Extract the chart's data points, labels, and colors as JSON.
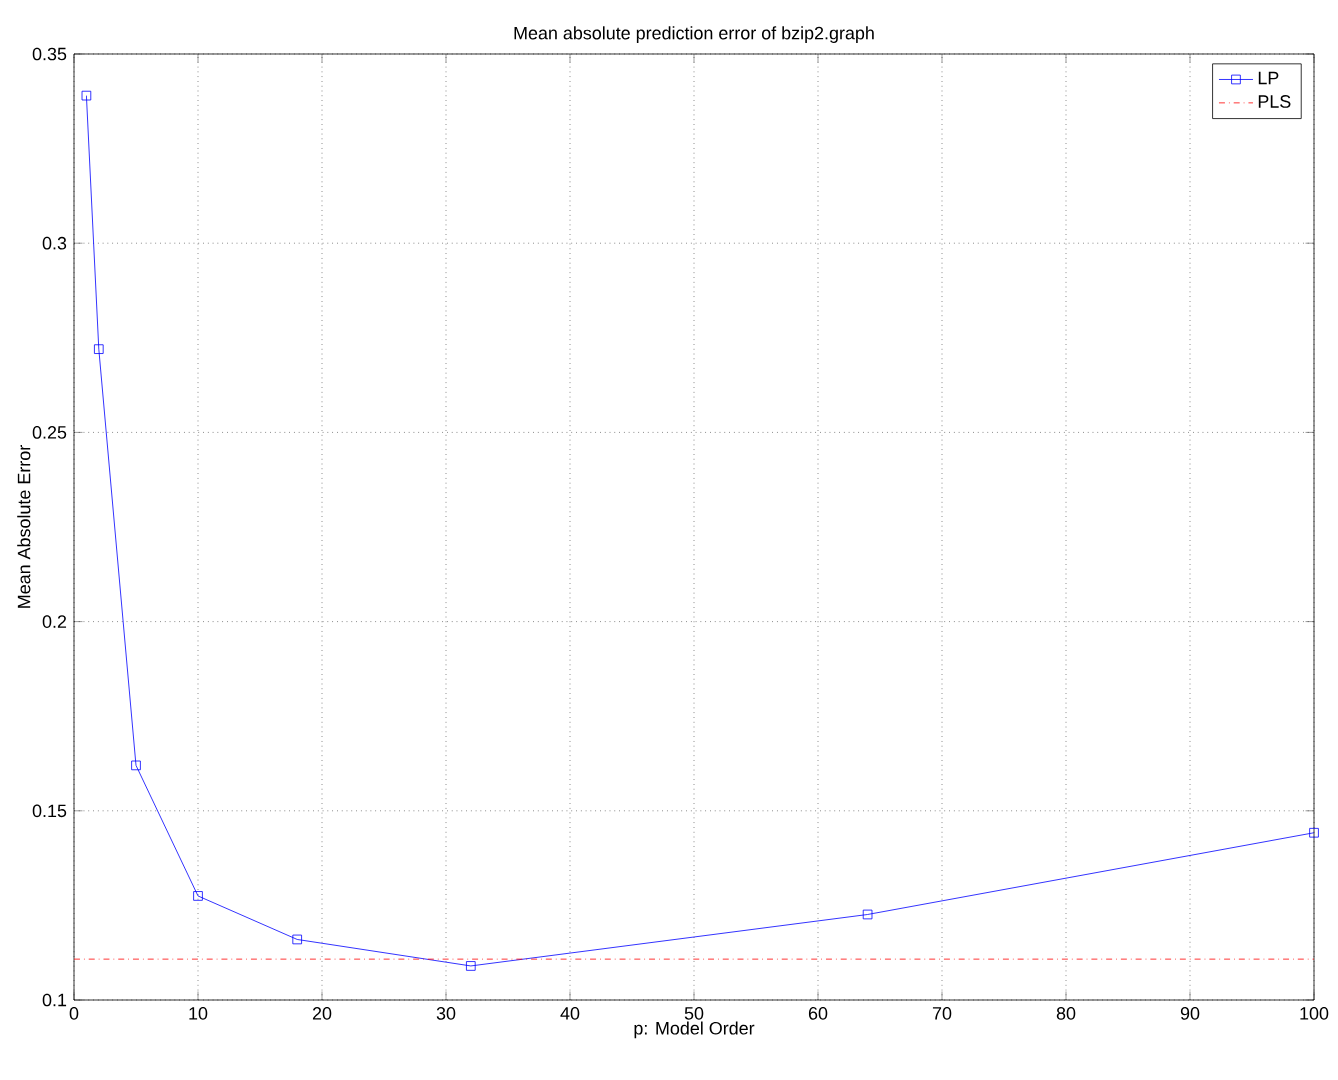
{
  "chart_data": {
    "type": "line",
    "title": "Mean absolute prediction error of bzip2.graph",
    "xlabel": "p: Model Order",
    "ylabel": "Mean Absolute Error",
    "xlim": [
      0,
      100
    ],
    "xticks": [
      0,
      10,
      20,
      30,
      40,
      50,
      60,
      70,
      80,
      90,
      100
    ],
    "ylim": [
      0.1,
      0.35
    ],
    "yticks": [
      0.1,
      0.15,
      0.2,
      0.25,
      0.3,
      0.35
    ],
    "grid": true,
    "legend": "top right",
    "series": [
      {
        "name": "LP",
        "color": "#0000ff",
        "marker": "square",
        "line_style": "solid",
        "x": [
          1,
          2,
          5,
          10,
          18,
          32,
          64,
          100
        ],
        "values": [
          0.339,
          0.272,
          0.162,
          0.1275,
          0.116,
          0.109,
          0.1226,
          0.1442
        ]
      },
      {
        "name": "PLS",
        "color": "#ff0000",
        "marker": "none",
        "line_style": "dashed",
        "x": [
          0,
          100
        ],
        "values": [
          0.1108,
          0.1108
        ]
      }
    ]
  }
}
